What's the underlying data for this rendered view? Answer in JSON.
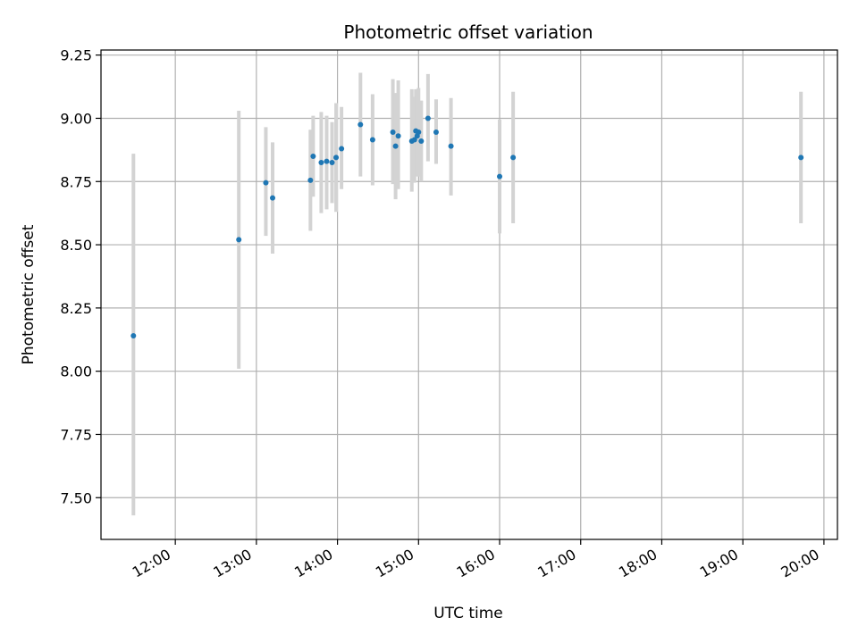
{
  "chart_data": {
    "type": "scatter",
    "title": "Photometric offset variation",
    "xlabel": "UTC time",
    "ylabel": "Photometric offset",
    "xlim": [
      "11:05",
      "20:10"
    ],
    "ylim": [
      7.335,
      9.27
    ],
    "x_ticks": [
      "12:00",
      "13:00",
      "14:00",
      "15:00",
      "16:00",
      "17:00",
      "18:00",
      "19:00",
      "20:00"
    ],
    "y_ticks": [
      7.5,
      7.75,
      8.0,
      8.25,
      8.5,
      8.75,
      9.0,
      9.25
    ],
    "grid": true,
    "point_color": "#1f77b4",
    "errorbar_color": "#d3d3d3",
    "points": [
      {
        "t": "11:29",
        "y": 8.14,
        "lo": 7.43,
        "hi": 8.86
      },
      {
        "t": "12:47",
        "y": 8.52,
        "lo": 8.01,
        "hi": 9.03
      },
      {
        "t": "13:07",
        "y": 8.745,
        "lo": 8.535,
        "hi": 8.965
      },
      {
        "t": "13:12",
        "y": 8.685,
        "lo": 8.465,
        "hi": 8.905
      },
      {
        "t": "13:40",
        "y": 8.755,
        "lo": 8.555,
        "hi": 8.955
      },
      {
        "t": "13:42",
        "y": 8.85,
        "lo": 8.69,
        "hi": 9.01
      },
      {
        "t": "13:48",
        "y": 8.825,
        "lo": 8.625,
        "hi": 9.025
      },
      {
        "t": "13:52",
        "y": 8.83,
        "lo": 8.64,
        "hi": 9.01
      },
      {
        "t": "13:56",
        "y": 8.825,
        "lo": 8.665,
        "hi": 8.985
      },
      {
        "t": "13:59",
        "y": 8.845,
        "lo": 8.63,
        "hi": 9.06
      },
      {
        "t": "14:03",
        "y": 8.88,
        "lo": 8.72,
        "hi": 9.045
      },
      {
        "t": "14:17",
        "y": 8.975,
        "lo": 8.77,
        "hi": 9.18
      },
      {
        "t": "14:26",
        "y": 8.915,
        "lo": 8.735,
        "hi": 9.095
      },
      {
        "t": "14:41",
        "y": 8.945,
        "lo": 8.74,
        "hi": 9.155
      },
      {
        "t": "14:43",
        "y": 8.89,
        "lo": 8.68,
        "hi": 9.1
      },
      {
        "t": "14:45",
        "y": 8.93,
        "lo": 8.72,
        "hi": 9.15
      },
      {
        "t": "14:55",
        "y": 8.91,
        "lo": 8.71,
        "hi": 9.115
      },
      {
        "t": "14:57",
        "y": 8.915,
        "lo": 8.745,
        "hi": 9.085
      },
      {
        "t": "14:58",
        "y": 8.95,
        "lo": 8.785,
        "hi": 9.115
      },
      {
        "t": "14:59",
        "y": 8.93,
        "lo": 8.77,
        "hi": 9.09
      },
      {
        "t": "15:00",
        "y": 8.945,
        "lo": 8.77,
        "hi": 9.12
      },
      {
        "t": "15:02",
        "y": 8.91,
        "lo": 8.75,
        "hi": 9.07
      },
      {
        "t": "15:07",
        "y": 9.0,
        "lo": 8.83,
        "hi": 9.175
      },
      {
        "t": "15:13",
        "y": 8.945,
        "lo": 8.82,
        "hi": 9.075
      },
      {
        "t": "15:24",
        "y": 8.89,
        "lo": 8.695,
        "hi": 9.08
      },
      {
        "t": "16:00",
        "y": 8.77,
        "lo": 8.545,
        "hi": 8.995
      },
      {
        "t": "16:10",
        "y": 8.845,
        "lo": 8.585,
        "hi": 9.105
      },
      {
        "t": "19:43",
        "y": 8.845,
        "lo": 8.585,
        "hi": 9.105
      }
    ]
  }
}
